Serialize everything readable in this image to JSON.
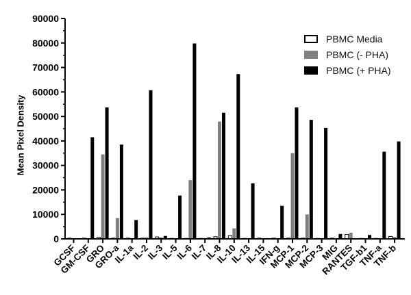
{
  "chart_data": {
    "type": "bar",
    "title": "",
    "xlabel": "",
    "ylabel": "Mean Pixel Density",
    "ylim": [
      0,
      90000
    ],
    "yticks": [
      0,
      10000,
      20000,
      30000,
      40000,
      50000,
      60000,
      70000,
      80000,
      90000
    ],
    "grid": false,
    "legend_position": "upper right",
    "categories": [
      "GCSF",
      "GM-CSF",
      "GRO",
      "GRO-a",
      "IL-1a",
      "IL-2",
      "IL-3",
      "IL-5",
      "IL-6",
      "IL-7",
      "IL-8",
      "IL-10",
      "IL-13",
      "IL-15",
      "IFN-g",
      "MCP-1",
      "MCP-2",
      "MCP-3",
      "MIG",
      "RANTES",
      "TGF-b1",
      "TNF-a",
      "TNF-b"
    ],
    "series": [
      {
        "name": "PBMC Media",
        "color": "#ffffff",
        "values": [
          300,
          300,
          600,
          300,
          300,
          300,
          800,
          200,
          200,
          200,
          900,
          1300,
          200,
          300,
          300,
          300,
          300,
          200,
          300,
          1800,
          200,
          200,
          1000
        ]
      },
      {
        "name": "PBMC (- PHA)",
        "color": "#808080",
        "values": [
          300,
          300,
          34500,
          8500,
          300,
          600,
          600,
          200,
          24000,
          200,
          47900,
          4300,
          200,
          300,
          300,
          35000,
          10000,
          200,
          300,
          2500,
          200,
          200,
          800
        ]
      },
      {
        "name": "PBMC (+ PHA)",
        "color": "#000000",
        "values": [
          0,
          41500,
          53700,
          38500,
          7700,
          60700,
          1200,
          17700,
          79800,
          600,
          51500,
          67300,
          22700,
          300,
          13500,
          53700,
          48600,
          45300,
          2000,
          300,
          1600,
          35600,
          39800
        ]
      }
    ]
  },
  "legend": {
    "items": [
      {
        "label": "PBMC Media"
      },
      {
        "label": "PBMC (- PHA)"
      },
      {
        "label": "PBMC (+ PHA)"
      }
    ]
  }
}
